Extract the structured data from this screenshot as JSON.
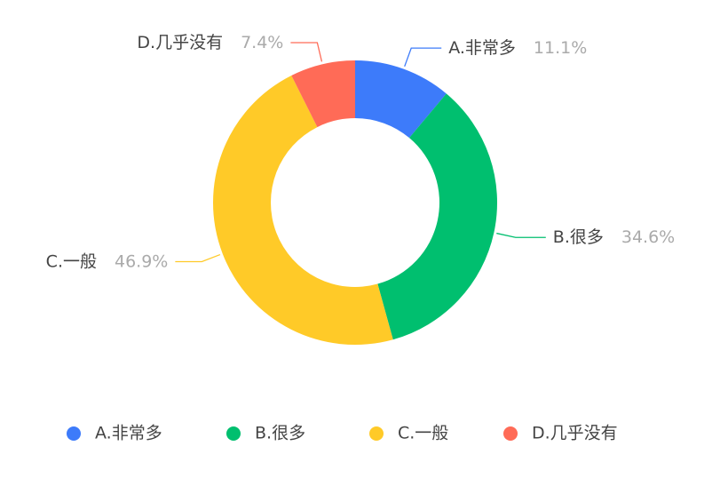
{
  "chart_data": {
    "type": "pie",
    "donut": true,
    "categories": [
      "A.非常多",
      "B.很多",
      "C.一般",
      "D.几乎没有"
    ],
    "values": [
      11.1,
      34.6,
      46.9,
      7.4
    ],
    "value_labels": [
      "11.1%",
      "34.6%",
      "46.9%",
      "7.4%"
    ],
    "colors": [
      "#3d7bfa",
      "#00bf6f",
      "#ffca28",
      "#ff6b57"
    ],
    "legend": "bottom"
  }
}
